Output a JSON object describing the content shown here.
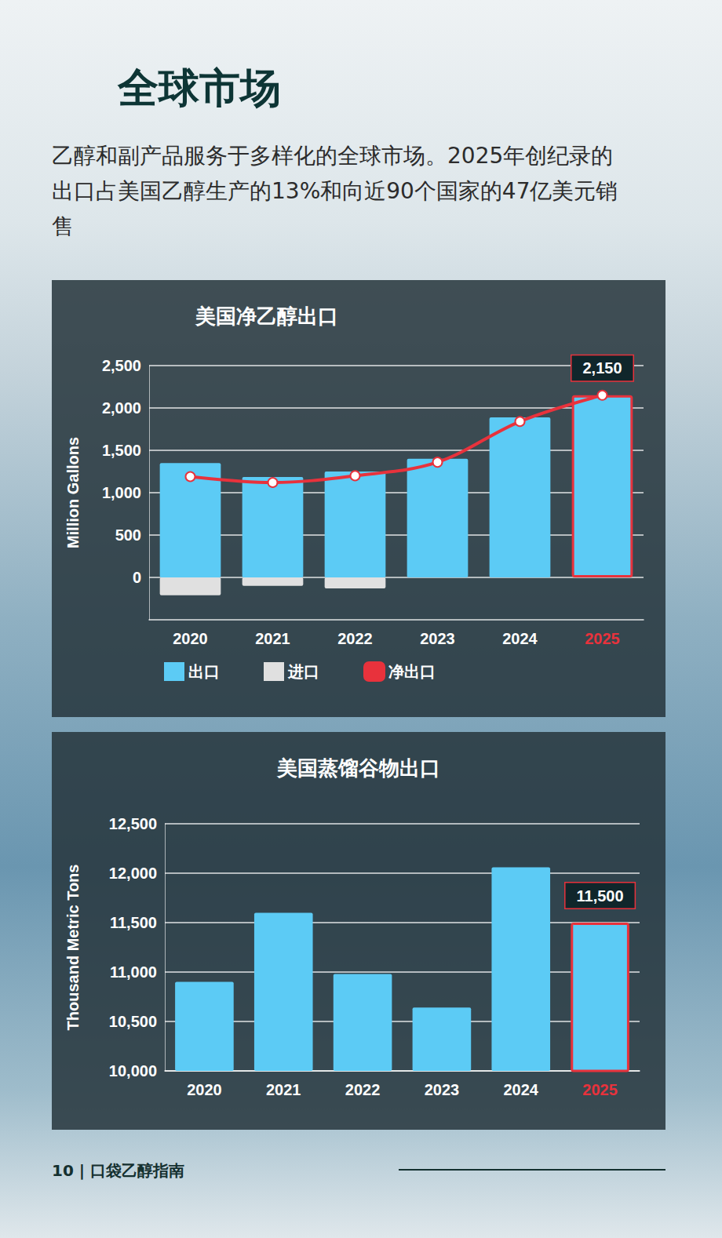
{
  "title": "全球市场",
  "body": "乙醇和副产品服务于多样化的全球市场。2025年创纪录的出口占美国乙醇生产的13%和向近90个国家的47亿美元销售",
  "footer": "10 | 口袋乙醇指南",
  "chart_data": [
    {
      "type": "bar",
      "title": "美国净乙醇出口",
      "y_label": "Million Gallons",
      "categories": [
        "2020",
        "2021",
        "2022",
        "2023",
        "2024",
        "2025"
      ],
      "series": [
        {
          "name": "出口",
          "type": "bar",
          "color": "#5ccbf5",
          "values": [
            1350,
            1185,
            1250,
            1400,
            1890,
            2150
          ]
        },
        {
          "name": "进口",
          "type": "bar",
          "color": "#e0e0e0",
          "values": [
            -210,
            -100,
            -130,
            0,
            0,
            0
          ]
        },
        {
          "name": "净出口",
          "type": "line",
          "color": "#e8323c",
          "marker": "circle",
          "values": [
            1190,
            1120,
            1200,
            1360,
            1840,
            2150
          ]
        }
      ],
      "stacked": true,
      "ylim": [
        -500,
        2500
      ],
      "yticks": [
        0,
        500,
        {
          "value": 1000,
          "label": "1,000"
        },
        {
          "value": 1500,
          "label": "1,500"
        },
        {
          "value": 2000,
          "label": "2,000"
        },
        {
          "value": 2500,
          "label": "2,500"
        }
      ],
      "grid": true,
      "legend": "bottom",
      "annotations": [
        {
          "x": "2025",
          "y": 2150,
          "text": "2,150"
        }
      ]
    },
    {
      "type": "bar",
      "title": "美国蒸馏谷物出口",
      "y_label": "Thousand Metric Tons",
      "categories": [
        "2020",
        "2021",
        "2022",
        "2023",
        "2024",
        "2025"
      ],
      "values": [
        10900,
        11600,
        10980,
        10640,
        12060,
        11500
      ],
      "color": "#5ccbf5",
      "ylim": [
        10000,
        12500
      ],
      "yticks": [
        {
          "value": 10000,
          "label": "10,000"
        },
        {
          "value": 10500,
          "label": "10,500"
        },
        {
          "value": 11000,
          "label": "11,000"
        },
        {
          "value": 11500,
          "label": "11,500"
        },
        {
          "value": 12000,
          "label": "12,000"
        },
        {
          "value": 12500,
          "label": "12,500"
        }
      ],
      "grid": true,
      "annotations": [
        {
          "x": "2025",
          "y": 11500,
          "text": "11,500"
        }
      ]
    }
  ]
}
